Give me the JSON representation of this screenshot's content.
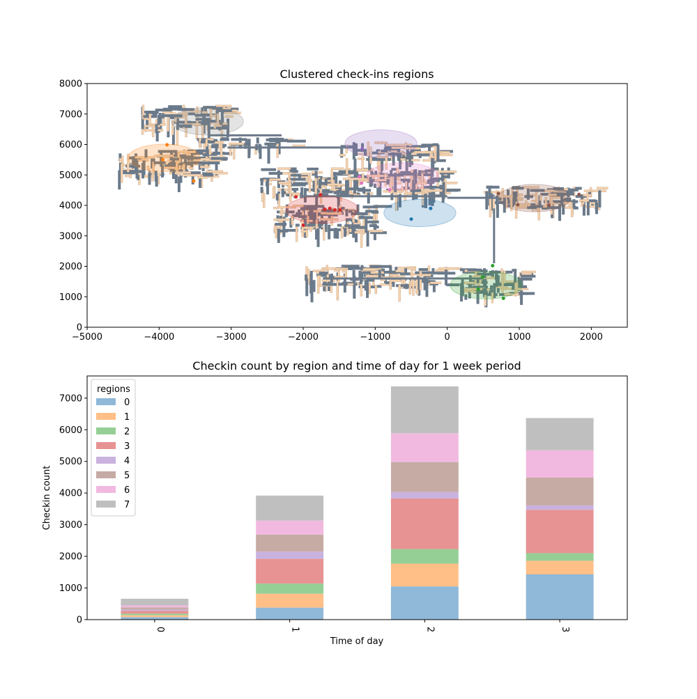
{
  "chart_data": [
    {
      "type": "scatter",
      "title": "Clustered check-ins regions",
      "xlabel": "",
      "ylabel": "",
      "xlim": [
        -5000,
        2500
      ],
      "ylim": [
        0,
        8000
      ],
      "x_ticks": [
        -5000,
        -4000,
        -3000,
        -2000,
        -1000,
        0,
        1000,
        2000
      ],
      "y_ticks": [
        0,
        1000,
        2000,
        3000,
        4000,
        5000,
        6000,
        7000,
        8000
      ],
      "x_tick_labels": [
        "−5000",
        "−4000",
        "−3000",
        "−2000",
        "−1000",
        "0",
        "1000",
        "2000"
      ],
      "y_tick_labels": [
        "0",
        "1000",
        "2000",
        "3000",
        "4000",
        "5000",
        "6000",
        "7000",
        "8000"
      ],
      "grid": false,
      "background": "road network map (gray and beige buildings)",
      "clusters": [
        {
          "region": "0",
          "color": "#1f77b4",
          "center": [
            -380,
            3750
          ],
          "width": 1000,
          "height": 900,
          "points": [
            [
              -500,
              3550
            ],
            [
              -230,
              3900
            ]
          ]
        },
        {
          "region": "1",
          "color": "#ff7f0e",
          "center": [
            -3930,
            5560
          ],
          "width": 1000,
          "height": 900,
          "points": [
            [
              -3890,
              5990
            ],
            [
              -3950,
              5500
            ],
            [
              -3520,
              4800
            ]
          ]
        },
        {
          "region": "2",
          "color": "#2ca02c",
          "center": [
            540,
            1380
          ],
          "width": 1000,
          "height": 900,
          "points": [
            [
              630,
              2020
            ],
            [
              490,
              1650
            ],
            [
              780,
              950
            ],
            [
              430,
              1250
            ]
          ]
        },
        {
          "region": "3",
          "color": "#d62728",
          "center": [
            -1740,
            3860
          ],
          "width": 1000,
          "height": 900,
          "points": [
            [
              -2100,
              4280
            ],
            [
              -1760,
              4350
            ],
            [
              -1700,
              3870
            ],
            [
              -1630,
              3900
            ],
            [
              -1560,
              3850
            ],
            [
              -1490,
              3850
            ],
            [
              -2000,
              3350
            ]
          ]
        },
        {
          "region": "4",
          "color": "#9467bd",
          "center": [
            -920,
            6030
          ],
          "width": 1000,
          "height": 900,
          "points": [
            [
              -1180,
              5860
            ]
          ]
        },
        {
          "region": "5",
          "color": "#8c564b",
          "center": [
            1210,
            4240
          ],
          "width": 1000,
          "height": 900,
          "points": [
            [
              710,
              4390
            ],
            [
              1830,
              4360
            ],
            [
              980,
              4020
            ],
            [
              1410,
              4010
            ]
          ]
        },
        {
          "region": "6",
          "color": "#e377c2",
          "center": [
            -620,
            4950
          ],
          "width": 1000,
          "height": 900,
          "points": [
            [
              -1220,
              4940
            ],
            [
              -1190,
              4730
            ],
            [
              -800,
              4510
            ]
          ]
        },
        {
          "region": "7",
          "color": "#7f7f7f",
          "center": [
            -3330,
            6760
          ],
          "width": 1000,
          "height": 900,
          "points": [
            [
              -3140,
              6690
            ]
          ]
        }
      ]
    },
    {
      "type": "bar",
      "stacked": true,
      "title": "Checkin count by region and time of day for 1 week period",
      "xlabel": "Time of day",
      "ylabel": "Checkin count",
      "categories": [
        "0",
        "1",
        "2",
        "3"
      ],
      "ylim": [
        0,
        7700
      ],
      "y_ticks": [
        0,
        1000,
        2000,
        3000,
        4000,
        5000,
        6000,
        7000
      ],
      "grid": false,
      "legend": {
        "title": "regions",
        "placement": "top-left"
      },
      "series": [
        {
          "name": "0",
          "color": "#8fb8d9",
          "values": [
            80,
            380,
            1050,
            1430
          ]
        },
        {
          "name": "1",
          "color": "#ffbf87",
          "values": [
            60,
            440,
            720,
            430
          ]
        },
        {
          "name": "2",
          "color": "#96cf96",
          "values": [
            50,
            320,
            460,
            240
          ]
        },
        {
          "name": "3",
          "color": "#e79293",
          "values": [
            90,
            780,
            1600,
            1370
          ]
        },
        {
          "name": "4",
          "color": "#c9b2de",
          "values": [
            40,
            230,
            200,
            140
          ]
        },
        {
          "name": "5",
          "color": "#c6aba5",
          "values": [
            70,
            540,
            950,
            880
          ]
        },
        {
          "name": "6",
          "color": "#f1b9e0",
          "values": [
            60,
            440,
            910,
            860
          ]
        },
        {
          "name": "7",
          "color": "#bfbfbf",
          "values": [
            210,
            790,
            1480,
            1020
          ]
        }
      ]
    }
  ]
}
